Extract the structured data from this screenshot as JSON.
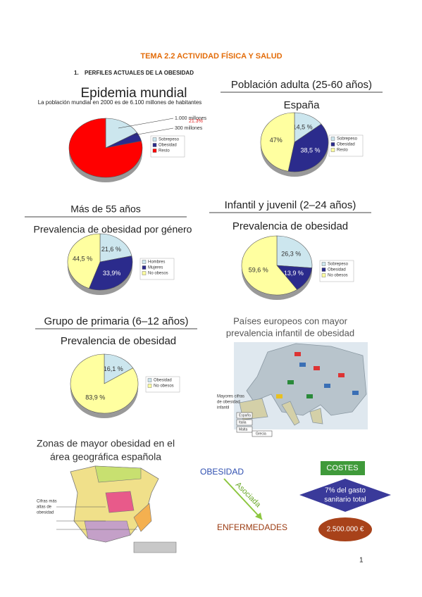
{
  "header": {
    "title": "TEMA 2.2 ACTIVIDAD FÍSICA Y SALUD",
    "section_number": "1.",
    "section_title": "PERFILES ACTUALES DE LA OBESIDAD"
  },
  "chart_data": [
    {
      "type": "pie",
      "title": "Epidemia mundial",
      "subtitle": "La población mundial en 2000 es de 6.100 millones de habitantes",
      "categories": [
        "Sobrepeso",
        "Obesidad",
        "Resto"
      ],
      "values": [
        16.4,
        4.9,
        78.7
      ],
      "colors": [
        "#cce6ee",
        "#2b2b8c",
        "#ff0000"
      ],
      "annotations": [
        "1.000 millones",
        "300 millones",
        "21.3%"
      ]
    },
    {
      "type": "pie",
      "title": "Población adulta (25-60 años)",
      "subtitle": "España",
      "categories": [
        "Sobrepeso",
        "Obesidad",
        "Resto"
      ],
      "values": [
        14.5,
        38.5,
        47
      ],
      "value_labels": [
        "14,5 %",
        "38,5 %",
        "47%"
      ],
      "colors": [
        "#cce6ee",
        "#2b2b8c",
        "#ffffa0"
      ]
    },
    {
      "type": "pie",
      "title": "Más de 55 años",
      "subtitle": "Prevalencia de obesidad por género",
      "categories": [
        "Hombres",
        "Mujeres",
        "No obesos"
      ],
      "values": [
        21.6,
        33.9,
        44.5
      ],
      "value_labels": [
        "21,6 %",
        "33,9%",
        "44,5 %"
      ],
      "colors": [
        "#cce6ee",
        "#2b2b8c",
        "#ffffa0"
      ]
    },
    {
      "type": "pie",
      "title": "Infantil y juvenil (2–24 años)",
      "subtitle": "Prevalencia de obesidad",
      "categories": [
        "Sobrepeso",
        "Obesidad",
        "No obesos"
      ],
      "values": [
        26.3,
        13.9,
        59.6
      ],
      "value_labels": [
        "26,3 %",
        "13,9 %",
        "59,6 %"
      ],
      "colors": [
        "#cce6ee",
        "#2b2b8c",
        "#ffffa0"
      ]
    },
    {
      "type": "pie",
      "title": "Grupo de primaria (6–12 años)",
      "subtitle": "Prevalencia de obesidad",
      "categories": [
        "Obesidad",
        "No obesos"
      ],
      "values": [
        16.1,
        83.9
      ],
      "value_labels": [
        "16,1 %",
        "83,9 %"
      ],
      "colors": [
        "#cce6ee",
        "#ffffa0"
      ]
    }
  ],
  "europe_map": {
    "title_lines": [
      "Países europeos con mayor",
      "prevalencia infantil de obesidad"
    ],
    "caption_lines": [
      "Mayores cifras",
      "de obesidad",
      "infantil"
    ],
    "countries": [
      "España",
      "Italia",
      "Malta",
      "Grecia"
    ]
  },
  "spain_map": {
    "title_lines": [
      "Zonas de mayor obesidad en el",
      "área geográfica española"
    ],
    "caption_lines": [
      "Cifras más",
      "altas de",
      "obesidad"
    ]
  },
  "diagram": {
    "cause": "OBESIDAD",
    "relation": "Asociada",
    "effect": "ENFERMEDADES",
    "costs_label": "COSTES",
    "cost_share_lines": [
      "7% del gasto",
      "sanitario total"
    ],
    "cost_amount": "2.500.000 €"
  },
  "footer": {
    "page_number": "1"
  }
}
